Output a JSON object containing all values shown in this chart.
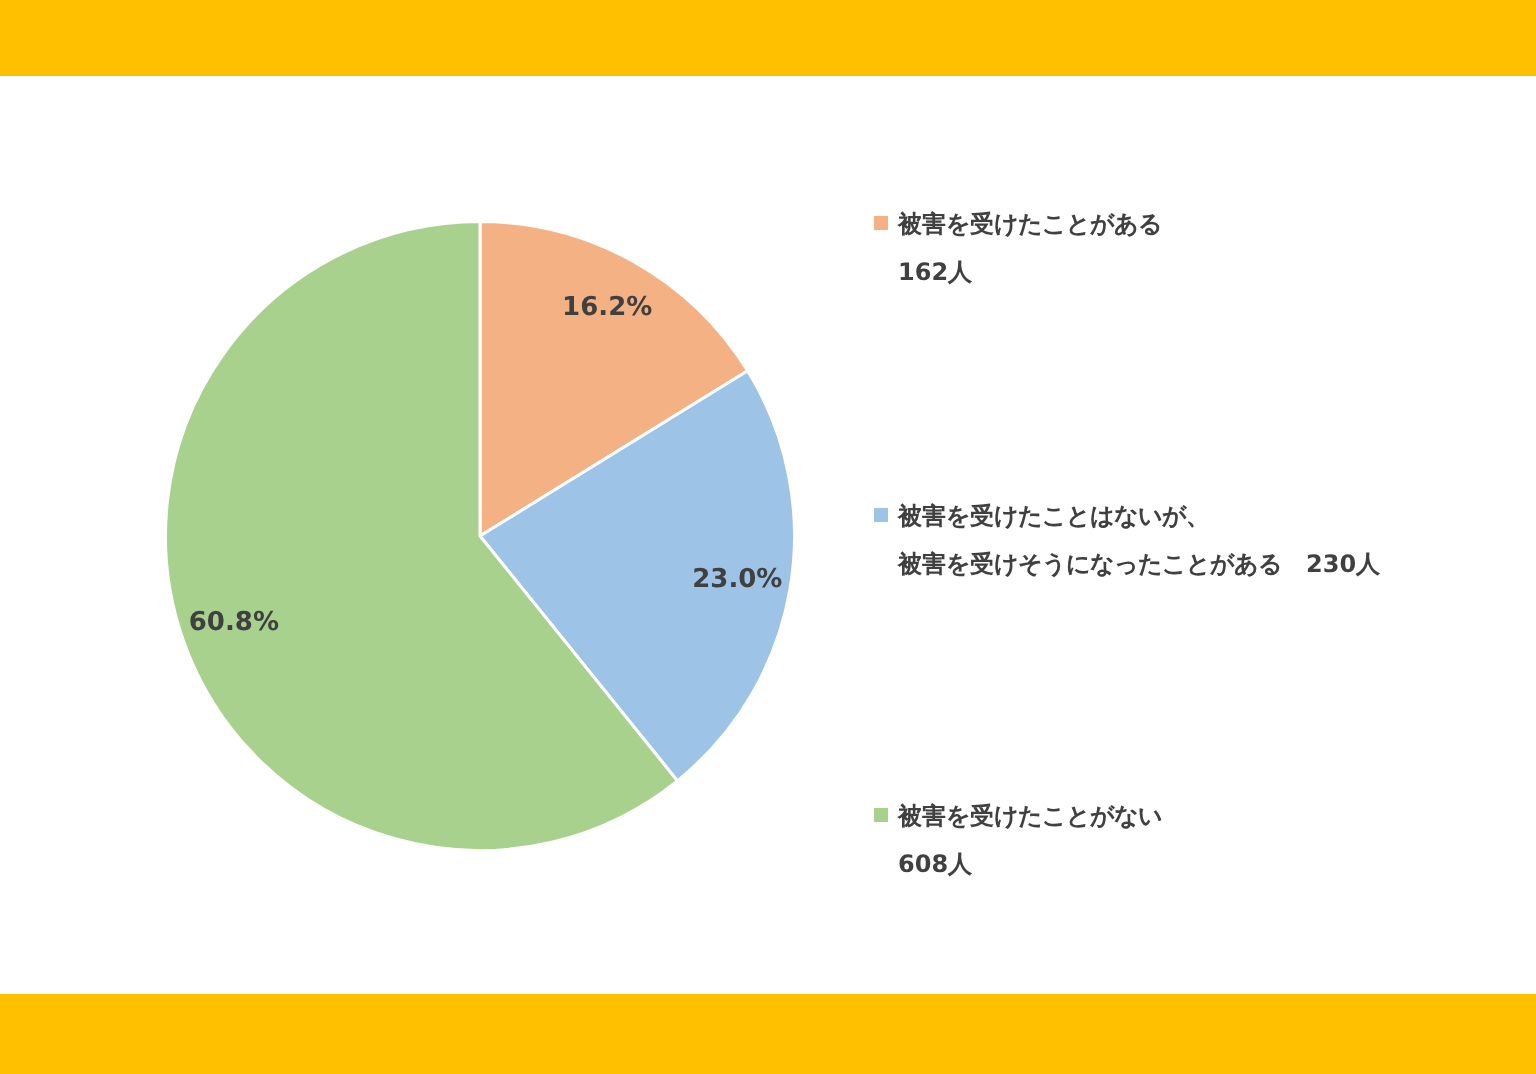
{
  "chart_data": {
    "type": "pie",
    "categories": [
      "被害を受けたことがある\n162人",
      "被害を受けたことはないが、被害を受けそうになったことがある　230人",
      "被害を受けたことがない\n608人"
    ],
    "values": [
      16.2,
      23.0,
      60.8
    ],
    "colors": [
      "#f4b183",
      "#9dc3e6",
      "#a9d18e"
    ],
    "value_labels": [
      "16.2%",
      "23.0%",
      "60.8%"
    ],
    "legend": "right"
  }
}
